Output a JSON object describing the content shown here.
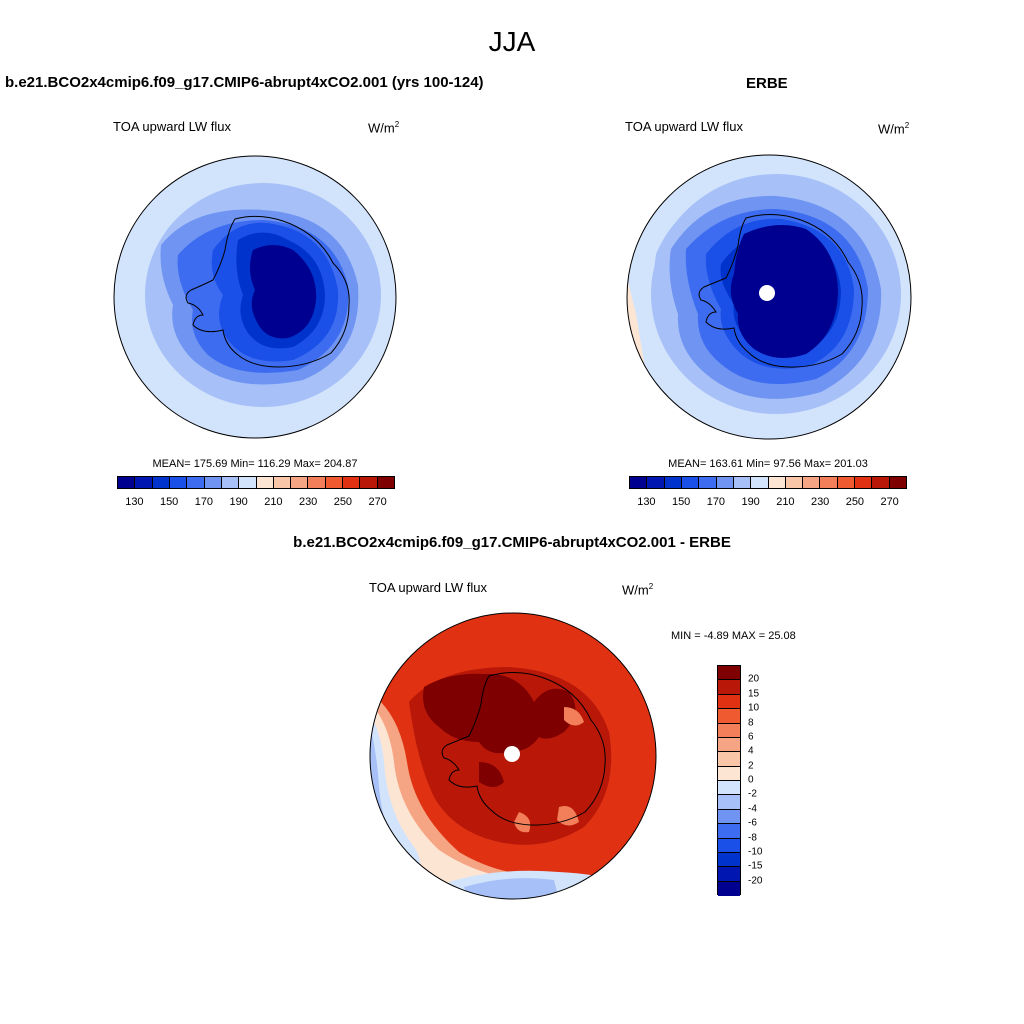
{
  "season": "JJA",
  "panels": {
    "model": {
      "title": "b.e21.BCO2x4cmip6.f09_g17.CMIP6-abrupt4xCO2.001 (yrs 100-124)",
      "variable": "TOA upward LW flux",
      "units": "W/m",
      "units_exp": "2",
      "stats": "MEAN= 175.69  Min= 116.29  Max= 204.87",
      "mean": 175.69,
      "min": 116.29,
      "max": 204.87
    },
    "obs": {
      "title": "ERBE",
      "variable": "TOA upward LW flux",
      "units": "W/m",
      "units_exp": "2",
      "stats": "MEAN= 163.61  Min=  97.56  Max= 201.03",
      "mean": 163.61,
      "min": 97.56,
      "max": 201.03
    },
    "diff": {
      "title": "b.e21.BCO2x4cmip6.f09_g17.CMIP6-abrupt4xCO2.001 - ERBE",
      "variable": "TOA upward LW flux",
      "units": "W/m",
      "units_exp": "2",
      "stats": "MIN =  -4.89 MAX =  25.08",
      "min": -4.89,
      "max": 25.08
    }
  },
  "colorbar_abs": {
    "colors": [
      "#000090",
      "#0016b0",
      "#0033cc",
      "#1a50e8",
      "#3d6cf0",
      "#6f94f2",
      "#a7c1f8",
      "#d2e3fc",
      "#fde5d4",
      "#f9c7a8",
      "#f5a583",
      "#f27e5a",
      "#ef5a30",
      "#e03212",
      "#b91808",
      "#7f0000"
    ],
    "tick_labels": [
      "130",
      "150",
      "170",
      "190",
      "210",
      "230",
      "250",
      "270"
    ],
    "tick_positions": [
      1,
      3,
      5,
      7,
      9,
      11,
      13,
      15
    ]
  },
  "colorbar_diff": {
    "colors": [
      "#7f0000",
      "#b91808",
      "#e03212",
      "#ef5a30",
      "#f27e5a",
      "#f5a583",
      "#f9c7a8",
      "#fde5d4",
      "#d2e3fc",
      "#a7c1f8",
      "#6f94f2",
      "#3d6cf0",
      "#1a50e8",
      "#0033cc",
      "#0016b0",
      "#000090"
    ],
    "tick_labels": [
      "20",
      "15",
      "10",
      "8",
      "6",
      "4",
      "2",
      "0",
      "-2",
      "-4",
      "-6",
      "-8",
      "-10",
      "-15",
      "-20"
    ]
  }
}
